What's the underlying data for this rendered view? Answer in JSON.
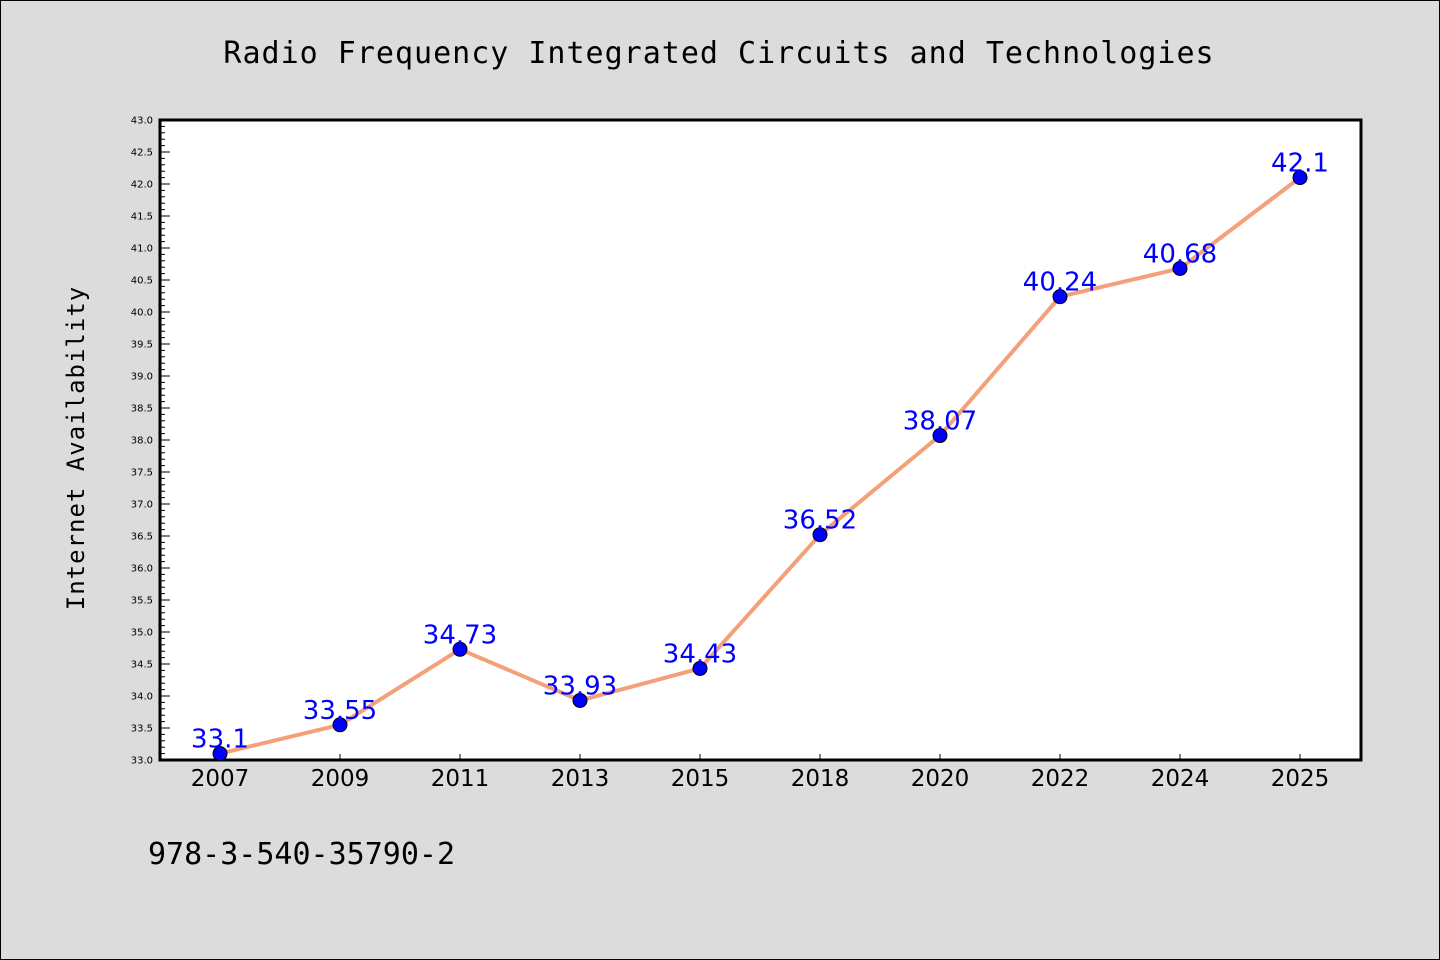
{
  "chart_data": {
    "type": "line",
    "title": "Radio Frequency Integrated Circuits and Technologies",
    "xlabel": "",
    "ylabel": "Internet Availability",
    "categories": [
      "2007",
      "2009",
      "2011",
      "2013",
      "2015",
      "2018",
      "2020",
      "2022",
      "2024",
      "2025"
    ],
    "values": [
      33.1,
      33.55,
      34.73,
      33.93,
      34.43,
      36.52,
      38.07,
      40.24,
      40.68,
      42.1
    ],
    "data_labels": [
      "33.1",
      "33.55",
      "34.73",
      "33.93",
      "34.43",
      "36.52",
      "38.07",
      "40.24",
      "40.68",
      "42.1"
    ],
    "ylim": [
      33.0,
      43.0
    ],
    "yticks": [
      "33.0",
      "33.5",
      "34.0",
      "34.5",
      "35.0",
      "35.5",
      "36.0",
      "36.5",
      "37.0",
      "37.5",
      "38.0",
      "38.5",
      "39.0",
      "39.5",
      "40.0",
      "40.5",
      "41.0",
      "41.5",
      "42.0",
      "42.5",
      "43.0"
    ],
    "grid": false,
    "colors": {
      "line": "#f4a07a",
      "marker": "#0000ff",
      "label": "#0000ff",
      "background": "#dcdcdc",
      "plot_background": "#ffffff"
    }
  },
  "caption": "978-3-540-35790-2"
}
